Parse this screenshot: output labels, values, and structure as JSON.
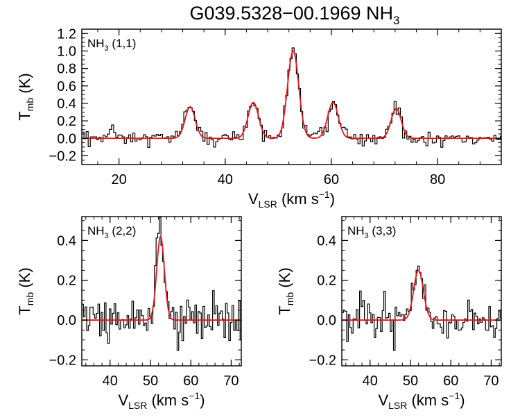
{
  "chart_data": {
    "title": "G039.5328−00.1969 NH",
    "title_sub": "3",
    "colors": {
      "spectrum": "#000000",
      "fit": "#e8141a"
    },
    "panels": [
      {
        "id": "nh3-11",
        "type": "line",
        "label_prefix": "NH",
        "label_sub": "3",
        "label_suffix": " (1,1)",
        "xlabel": "V",
        "xlabel_sub": "LSR",
        "xlabel_unit": " (km s",
        "xlabel_sup": "−1",
        "xlabel_end": ")",
        "ylabel": "T",
        "ylabel_sub": "mb",
        "ylabel_unit": " (K)",
        "xlim": [
          13,
          92
        ],
        "ylim": [
          -0.3,
          1.25
        ],
        "xticks": [
          20,
          40,
          60,
          80
        ],
        "xtick_labels": [
          "20",
          "40",
          "60",
          "80"
        ],
        "yticks": [
          -0.2,
          0.0,
          0.2,
          0.4,
          0.6,
          0.8,
          1.0,
          1.2
        ],
        "ytick_labels": [
          "−0.2",
          "0.0",
          "0.2",
          "0.4",
          "0.6",
          "0.8",
          "1.0",
          "1.2"
        ],
        "noise": 0.05,
        "spectrum_x_range": [
          13,
          92
        ],
        "spectrum_dx": 0.4,
        "fit_components": [
          {
            "center": 33.4,
            "amp": 0.36,
            "sigma": 0.95
          },
          {
            "center": 45.3,
            "amp": 0.41,
            "sigma": 1.0
          },
          {
            "center": 52.8,
            "amp": 1.0,
            "sigma": 1.05
          },
          {
            "center": 60.3,
            "amp": 0.41,
            "sigma": 1.0
          },
          {
            "center": 72.2,
            "amp": 0.34,
            "sigma": 0.95
          }
        ]
      },
      {
        "id": "nh3-22",
        "type": "line",
        "label_prefix": "NH",
        "label_sub": "3",
        "label_suffix": " (2,2)",
        "xlabel": "V",
        "xlabel_sub": "LSR",
        "xlabel_unit": " (km s",
        "xlabel_sup": "−1",
        "xlabel_end": ")",
        "ylabel": "T",
        "ylabel_sub": "mb",
        "ylabel_unit": " (K)",
        "xlim": [
          33,
          72.5
        ],
        "ylim": [
          -0.23,
          0.52
        ],
        "xticks": [
          40,
          50,
          60,
          70
        ],
        "xtick_labels": [
          "40",
          "50",
          "60",
          "70"
        ],
        "yticks": [
          -0.2,
          0.0,
          0.2,
          0.4
        ],
        "ytick_labels": [
          "−0.2",
          "0.0",
          "0.2",
          "0.4"
        ],
        "noise": 0.055,
        "spectrum_x_range": [
          33,
          72.5
        ],
        "spectrum_dx": 0.4,
        "fit_components": [
          {
            "center": 52.5,
            "amp": 0.42,
            "sigma": 0.95
          }
        ]
      },
      {
        "id": "nh3-33",
        "type": "line",
        "label_prefix": "NH",
        "label_sub": "3",
        "label_suffix": " (3,3)",
        "xlabel": "V",
        "xlabel_sub": "LSR",
        "xlabel_unit": " (km s",
        "xlabel_sup": "−1",
        "xlabel_end": ")",
        "ylabel": "T",
        "ylabel_sub": "mb",
        "ylabel_unit": " (K)",
        "xlim": [
          33,
          72.5
        ],
        "ylim": [
          -0.23,
          0.52
        ],
        "xticks": [
          40,
          50,
          60,
          70
        ],
        "xtick_labels": [
          "40",
          "50",
          "60",
          "70"
        ],
        "yticks": [
          -0.2,
          0.0,
          0.2,
          0.4
        ],
        "ytick_labels": [
          "−0.2",
          "0.0",
          "0.2",
          "0.4"
        ],
        "noise": 0.05,
        "spectrum_x_range": [
          33,
          72.5
        ],
        "spectrum_dx": 0.4,
        "fit_components": [
          {
            "center": 52.0,
            "amp": 0.25,
            "sigma": 1.2
          }
        ]
      }
    ]
  }
}
